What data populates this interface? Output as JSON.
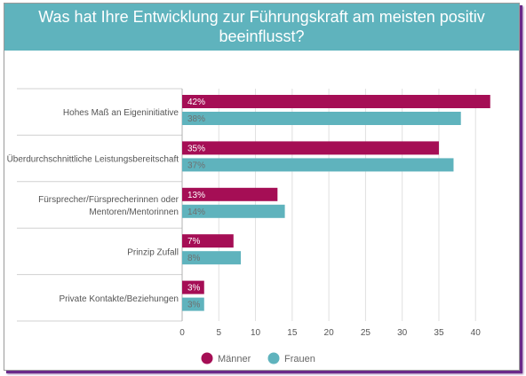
{
  "title": "Was hat Ihre Entwicklung zur Führungskraft am meisten positiv beeinflusst?",
  "colors": {
    "header": "#5fb3bd",
    "maenner": "#a50e55",
    "frauen": "#5fb3bd"
  },
  "chart_data": {
    "type": "bar",
    "orientation": "horizontal",
    "categories": [
      "Hohes Maß an Eigeninitiative",
      "Überdurchschnittliche Leistungsbereitschaft",
      "Fürsprecher/Fürsprecherinnen oder Mentoren/Mentorinnen",
      "Prinzip Zufall",
      "Private Kontakte/Beziehungen"
    ],
    "category_lines": [
      [
        "Hohes Maß an Eigeninitiative"
      ],
      [
        "Überdurchschnittliche Leistungsbereitschaft"
      ],
      [
        "Fürsprecher/Fürsprecherinnen oder",
        "Mentoren/Mentorinnen"
      ],
      [
        "Prinzip Zufall"
      ],
      [
        "Private Kontakte/Beziehungen"
      ]
    ],
    "series": [
      {
        "name": "Männer",
        "color": "#a50e55",
        "values": [
          42,
          35,
          13,
          7,
          3
        ],
        "labels": [
          "42%",
          "35%",
          "13%",
          "7%",
          "3%"
        ]
      },
      {
        "name": "Frauen",
        "color": "#5fb3bd",
        "values": [
          38,
          37,
          14,
          8,
          3
        ],
        "labels": [
          "38%",
          "37%",
          "14%",
          "8%",
          "3%"
        ]
      }
    ],
    "xlim": [
      0,
      43
    ],
    "xticks": [
      0,
      5,
      10,
      15,
      20,
      25,
      30,
      35,
      40
    ],
    "grid": true,
    "legend_position": "bottom-center"
  }
}
